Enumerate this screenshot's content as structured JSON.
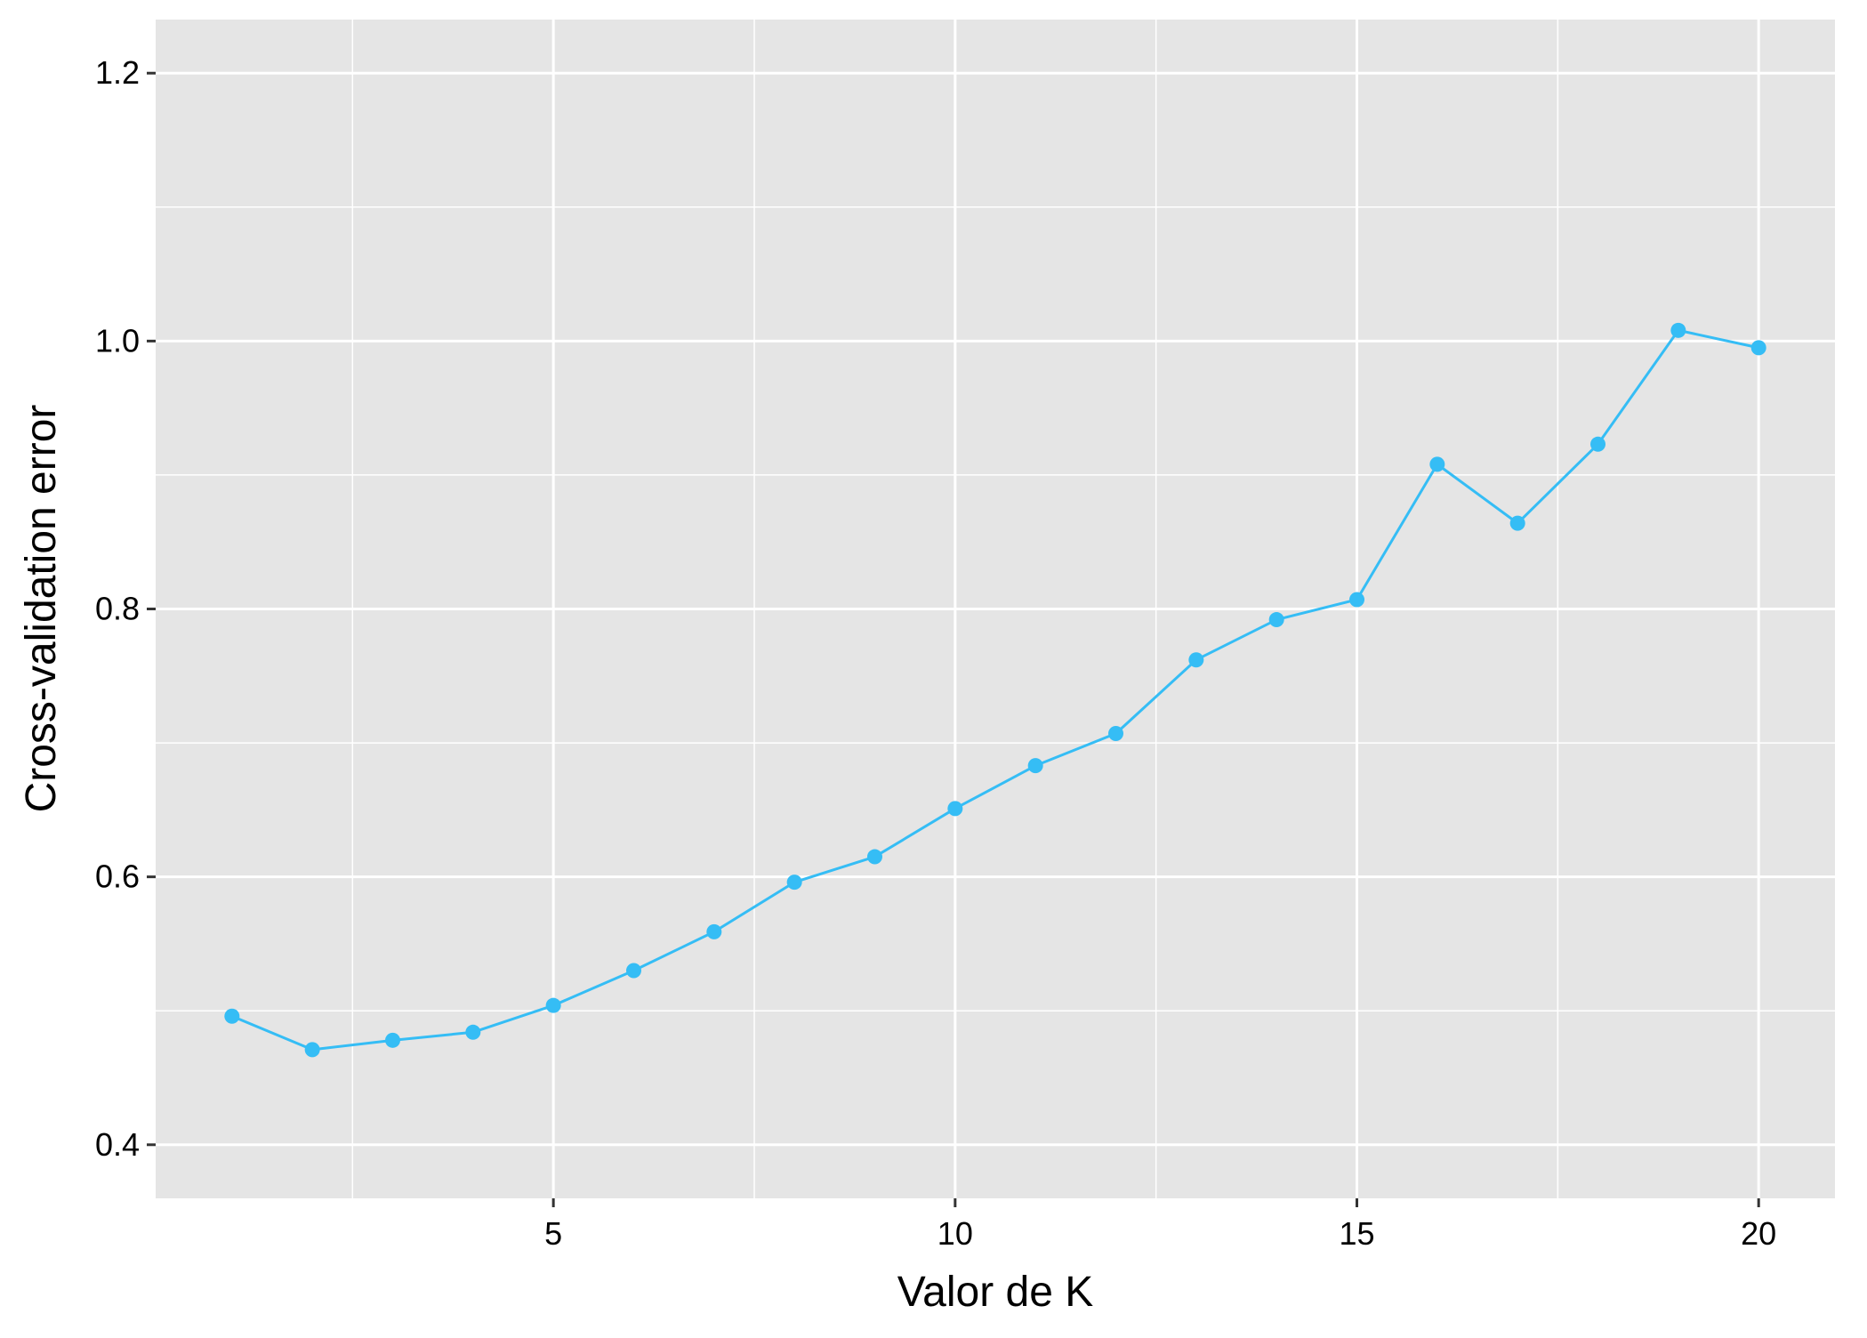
{
  "chart_data": {
    "type": "line",
    "title": "",
    "xlabel": "Valor de K",
    "ylabel": "Cross-validation error",
    "x": [
      1,
      2,
      3,
      4,
      5,
      6,
      7,
      8,
      9,
      10,
      11,
      12,
      13,
      14,
      15,
      16,
      17,
      18,
      19,
      20
    ],
    "series": [
      {
        "values": [
          0.496,
          0.471,
          0.478,
          0.484,
          0.504,
          0.53,
          0.559,
          0.596,
          0.615,
          0.651,
          0.683,
          0.707,
          0.762,
          0.792,
          0.807,
          0.908,
          0.864,
          0.923,
          1.008,
          0.995
        ],
        "color": "#35BDF5"
      }
    ],
    "xlim": [
      0.05,
      20.95
    ],
    "ylim": [
      0.36,
      1.24
    ],
    "xticks": [
      "5",
      "10",
      "15",
      "20"
    ],
    "yticks": [
      "0.4",
      "0.6",
      "0.8",
      "1.0",
      "1.2"
    ],
    "grid": true,
    "legend": "none",
    "panel_color": "#E5E5E5",
    "grid_color": "#FFFFFF"
  }
}
